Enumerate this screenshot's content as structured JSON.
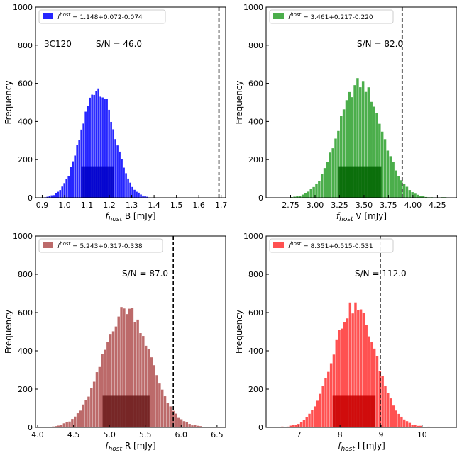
{
  "chart_data": [
    {
      "type": "bar",
      "color": "#0000ff",
      "highlight_color": "#0000c8",
      "ylabel": "Frequency",
      "xlabel_main": "f",
      "xlabel_sub": "host",
      "xlabel_rest": " B [mJy]",
      "legend_sym": "f",
      "legend_sup": "host",
      "legend_value": " = 1.148+0.072-0.074",
      "legend_placement": "top-left",
      "annotation_name": "3C120",
      "annotation_snr": "S/N = 46.0",
      "xlim": [
        0.87,
        1.72
      ],
      "ylim": [
        0,
        1000
      ],
      "xticks": [
        "0.9",
        "1.0",
        "1.1",
        "1.2",
        "1.3",
        "1.4",
        "1.5",
        "1.6",
        "1.7"
      ],
      "xtick_values": [
        0.9,
        1.0,
        1.1,
        1.2,
        1.3,
        1.4,
        1.5,
        1.6,
        1.7
      ],
      "yticks": [
        "0",
        "200",
        "400",
        "600",
        "800",
        "1000"
      ],
      "ytick_values": [
        0,
        200,
        400,
        600,
        800,
        1000
      ],
      "vline": 1.69,
      "shaded_range": [
        1.074,
        1.22
      ],
      "shaded_height": 165,
      "mean": 1.148,
      "sigma": 0.073,
      "peak": 575,
      "bin_width": 0.0095,
      "hist_range": [
        0.9,
        1.4
      ]
    },
    {
      "type": "bar",
      "color": "#2ca02c",
      "highlight_color": "#006400",
      "ylabel": "Frequency",
      "xlabel_main": "f",
      "xlabel_sub": "host",
      "xlabel_rest": " V [mJy]",
      "legend_sym": "f",
      "legend_sup": "host",
      "legend_value": " = 3.461+0.217-0.220",
      "legend_placement": "top-left",
      "annotation_name": "",
      "annotation_snr": "S/N = 82.0",
      "xlim": [
        2.5,
        4.45
      ],
      "ylim": [
        0,
        1000
      ],
      "xticks": [
        "2.75",
        "3.00",
        "3.25",
        "3.50",
        "3.75",
        "4.00",
        "4.25"
      ],
      "xtick_values": [
        2.75,
        3.0,
        3.25,
        3.5,
        3.75,
        4.0,
        4.25
      ],
      "yticks": [
        "0",
        "200",
        "400",
        "600",
        "800",
        "1000"
      ],
      "ytick_values": [
        0,
        200,
        400,
        600,
        800,
        1000
      ],
      "vline": 3.89,
      "shaded_range": [
        3.241,
        3.678
      ],
      "shaded_height": 165,
      "mean": 3.461,
      "sigma": 0.218,
      "peak": 600,
      "bin_width": 0.028,
      "hist_range": [
        2.75,
        4.35
      ]
    },
    {
      "type": "bar",
      "color": "#b05050",
      "highlight_color": "#6b1a1a",
      "ylabel": "Frequency",
      "xlabel_main": "f",
      "xlabel_sub": "host",
      "xlabel_rest": " R [mJy]",
      "legend_sym": "f",
      "legend_sup": "host",
      "legend_value": " = 5.243+0.317-0.338",
      "legend_placement": "top-left",
      "annotation_name": "",
      "annotation_snr": "S/N = 87.0",
      "xlim": [
        3.97,
        6.62
      ],
      "ylim": [
        0,
        1000
      ],
      "xticks": [
        "4.0",
        "4.5",
        "5.0",
        "5.5",
        "6.0",
        "6.5"
      ],
      "xtick_values": [
        4.0,
        4.5,
        5.0,
        5.5,
        6.0,
        6.5
      ],
      "yticks": [
        "0",
        "200",
        "400",
        "600",
        "800",
        "1000"
      ],
      "ytick_values": [
        0,
        200,
        400,
        600,
        800,
        1000
      ],
      "vline": 5.89,
      "shaded_range": [
        4.905,
        5.56
      ],
      "shaded_height": 165,
      "mean": 5.243,
      "sigma": 0.327,
      "peak": 620,
      "bin_width": 0.038,
      "hist_range": [
        4.2,
        6.35
      ]
    },
    {
      "type": "bar",
      "color": "#ff3333",
      "highlight_color": "#c80000",
      "ylabel": "Frequency",
      "xlabel_main": "f",
      "xlabel_sub": "host",
      "xlabel_rest": " I [mJy]",
      "legend_sym": "f",
      "legend_sup": "host",
      "legend_value": " = 8.351+0.515-0.531",
      "legend_placement": "top-left",
      "annotation_name": "",
      "annotation_snr": "S/N = 112.0",
      "xlim": [
        6.2,
        10.85
      ],
      "ylim": [
        0,
        1000
      ],
      "xticks": [
        "7",
        "8",
        "9",
        "10"
      ],
      "xtick_values": [
        7,
        8,
        9,
        10
      ],
      "yticks": [
        "0",
        "200",
        "400",
        "600",
        "800",
        "1000"
      ],
      "ytick_values": [
        0,
        200,
        400,
        600,
        800,
        1000
      ],
      "vline": 8.98,
      "shaded_range": [
        7.82,
        8.866
      ],
      "shaded_height": 165,
      "mean": 8.351,
      "sigma": 0.523,
      "peak": 630,
      "bin_width": 0.066,
      "hist_range": [
        6.5,
        10.3
      ]
    }
  ]
}
